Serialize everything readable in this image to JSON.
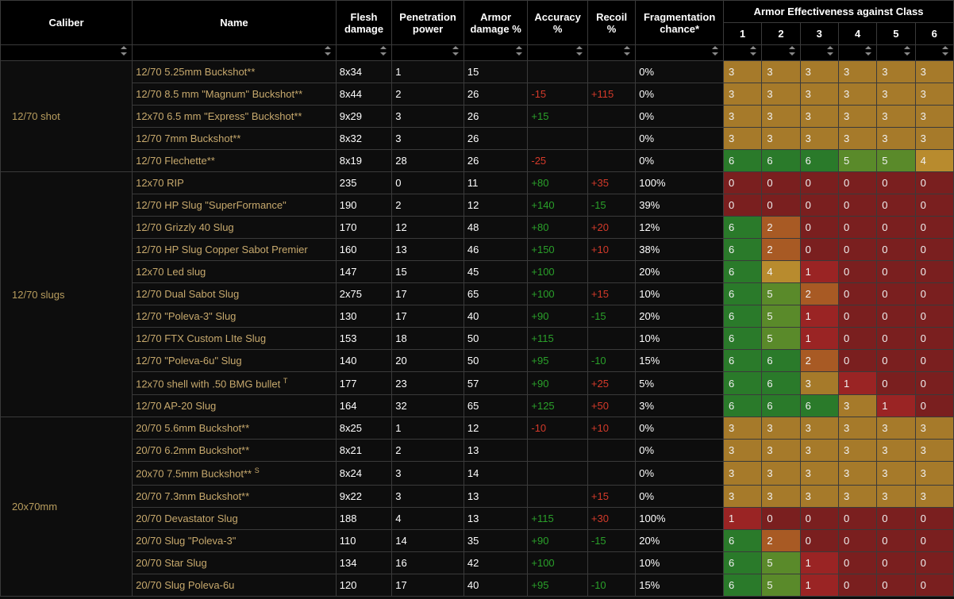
{
  "colors": {
    "bg": "#0d0d0d",
    "border": "#3a3a3a",
    "text": "#ffffff",
    "link": "#c7a96d",
    "caliber": "#b89d5e",
    "pos_green": "#2aa02a",
    "neg_red": "#d43a2a",
    "armor": {
      "0": "#7a1f1f",
      "1": "#9a2424",
      "2": "#a85a24",
      "3": "#a67a2a",
      "4": "#b88b2e",
      "5": "#5a8a2a",
      "6": "#2a7a2a"
    }
  },
  "header_top": "Armor Effectiveness against Class",
  "columns": [
    "Caliber",
    "Name",
    "Flesh damage",
    "Penetration power",
    "Armor damage %",
    "Accuracy %",
    "Recoil %",
    "Fragmentation chance*",
    "1",
    "2",
    "3",
    "4",
    "5",
    "6"
  ],
  "calibers": [
    {
      "label": "12/70 shot",
      "rows": [
        {
          "name": "12/70 5.25mm Buckshot**",
          "flesh": "8x34",
          "pen": "1",
          "armor": "15",
          "acc": "",
          "recoil": "",
          "frag": "0%",
          "ac": [
            3,
            3,
            3,
            3,
            3,
            3
          ]
        },
        {
          "name": "12/70 8.5 mm \"Magnum\" Buckshot**",
          "flesh": "8x44",
          "pen": "2",
          "armor": "26",
          "acc": "-15",
          "recoil": "+115",
          "frag": "0%",
          "ac": [
            3,
            3,
            3,
            3,
            3,
            3
          ]
        },
        {
          "name": "12x70 6.5 mm \"Express\" Buckshot**",
          "flesh": "9x29",
          "pen": "3",
          "armor": "26",
          "acc": "+15",
          "recoil": "",
          "frag": "0%",
          "ac": [
            3,
            3,
            3,
            3,
            3,
            3
          ]
        },
        {
          "name": "12/70 7mm Buckshot**",
          "flesh": "8x32",
          "pen": "3",
          "armor": "26",
          "acc": "",
          "recoil": "",
          "frag": "0%",
          "ac": [
            3,
            3,
            3,
            3,
            3,
            3
          ]
        },
        {
          "name": "12/70 Flechette**",
          "flesh": "8x19",
          "pen": "28",
          "armor": "26",
          "acc": "-25",
          "recoil": "",
          "frag": "0%",
          "ac": [
            6,
            6,
            6,
            5,
            5,
            4
          ]
        }
      ]
    },
    {
      "label": "12/70 slugs",
      "rows": [
        {
          "name": "12x70 RIP",
          "flesh": "235",
          "pen": "0",
          "armor": "11",
          "acc": "+80",
          "recoil": "+35",
          "frag": "100%",
          "ac": [
            0,
            0,
            0,
            0,
            0,
            0
          ]
        },
        {
          "name": "12/70 HP Slug \"SuperFormance\"",
          "flesh": "190",
          "pen": "2",
          "armor": "12",
          "acc": "+140",
          "recoil": "-15",
          "frag": "39%",
          "ac": [
            0,
            0,
            0,
            0,
            0,
            0
          ]
        },
        {
          "name": "12/70 Grizzly 40 Slug",
          "flesh": "170",
          "pen": "12",
          "armor": "48",
          "acc": "+80",
          "recoil": "+20",
          "frag": "12%",
          "ac": [
            6,
            2,
            0,
            0,
            0,
            0
          ]
        },
        {
          "name": "12/70 HP Slug Copper Sabot Premier",
          "flesh": "160",
          "pen": "13",
          "armor": "46",
          "acc": "+150",
          "recoil": "+10",
          "frag": "38%",
          "ac": [
            6,
            2,
            0,
            0,
            0,
            0
          ]
        },
        {
          "name": "12x70 Led slug",
          "flesh": "147",
          "pen": "15",
          "armor": "45",
          "acc": "+100",
          "recoil": "",
          "frag": "20%",
          "ac": [
            6,
            4,
            1,
            0,
            0,
            0
          ]
        },
        {
          "name": "12/70 Dual Sabot Slug",
          "flesh": "2x75",
          "pen": "17",
          "armor": "65",
          "acc": "+100",
          "recoil": "+15",
          "frag": "10%",
          "ac": [
            6,
            5,
            2,
            0,
            0,
            0
          ]
        },
        {
          "name": "12/70 \"Poleva-3\" Slug",
          "flesh": "130",
          "pen": "17",
          "armor": "40",
          "acc": "+90",
          "recoil": "-15",
          "frag": "20%",
          "ac": [
            6,
            5,
            1,
            0,
            0,
            0
          ]
        },
        {
          "name": "12/70 FTX Custom LIte Slug",
          "flesh": "153",
          "pen": "18",
          "armor": "50",
          "acc": "+115",
          "recoil": "",
          "frag": "10%",
          "ac": [
            6,
            5,
            1,
            0,
            0,
            0
          ]
        },
        {
          "name": "12/70 \"Poleva-6u\" Slug",
          "flesh": "140",
          "pen": "20",
          "armor": "50",
          "acc": "+95",
          "recoil": "-10",
          "frag": "15%",
          "ac": [
            6,
            6,
            2,
            0,
            0,
            0
          ]
        },
        {
          "name": "12x70 shell with .50 BMG bullet",
          "sup": "T",
          "flesh": "177",
          "pen": "23",
          "armor": "57",
          "acc": "+90",
          "recoil": "+25",
          "frag": "5%",
          "ac": [
            6,
            6,
            3,
            1,
            0,
            0
          ]
        },
        {
          "name": "12/70 AP-20 Slug",
          "flesh": "164",
          "pen": "32",
          "armor": "65",
          "acc": "+125",
          "recoil": "+50",
          "frag": "3%",
          "ac": [
            6,
            6,
            6,
            3,
            1,
            0
          ]
        }
      ]
    },
    {
      "label": "20x70mm",
      "rows": [
        {
          "name": "20/70 5.6mm Buckshot**",
          "flesh": "8x25",
          "pen": "1",
          "armor": "12",
          "acc": "-10",
          "recoil": "+10",
          "frag": "0%",
          "ac": [
            3,
            3,
            3,
            3,
            3,
            3
          ]
        },
        {
          "name": "20/70 6.2mm Buckshot**",
          "flesh": "8x21",
          "pen": "2",
          "armor": "13",
          "acc": "",
          "recoil": "",
          "frag": "0%",
          "ac": [
            3,
            3,
            3,
            3,
            3,
            3
          ]
        },
        {
          "name": "20x70 7.5mm Buckshot**",
          "sup": "S",
          "flesh": "8x24",
          "pen": "3",
          "armor": "14",
          "acc": "",
          "recoil": "",
          "frag": "0%",
          "ac": [
            3,
            3,
            3,
            3,
            3,
            3
          ]
        },
        {
          "name": "20/70 7.3mm Buckshot**",
          "flesh": "9x22",
          "pen": "3",
          "armor": "13",
          "acc": "",
          "recoil": "+15",
          "frag": "0%",
          "ac": [
            3,
            3,
            3,
            3,
            3,
            3
          ]
        },
        {
          "name": "20/70 Devastator Slug",
          "flesh": "188",
          "pen": "4",
          "armor": "13",
          "acc": "+115",
          "recoil": "+30",
          "frag": "100%",
          "ac": [
            1,
            0,
            0,
            0,
            0,
            0
          ]
        },
        {
          "name": "20/70 Slug \"Poleva-3\"",
          "flesh": "110",
          "pen": "14",
          "armor": "35",
          "acc": "+90",
          "recoil": "-15",
          "frag": "20%",
          "ac": [
            6,
            2,
            0,
            0,
            0,
            0
          ]
        },
        {
          "name": "20/70 Star Slug",
          "flesh": "134",
          "pen": "16",
          "armor": "42",
          "acc": "+100",
          "recoil": "",
          "frag": "10%",
          "ac": [
            6,
            5,
            1,
            0,
            0,
            0
          ]
        },
        {
          "name": "20/70 Slug Poleva-6u",
          "flesh": "120",
          "pen": "17",
          "armor": "40",
          "acc": "+95",
          "recoil": "-10",
          "frag": "15%",
          "ac": [
            6,
            5,
            1,
            0,
            0,
            0
          ]
        }
      ]
    }
  ]
}
